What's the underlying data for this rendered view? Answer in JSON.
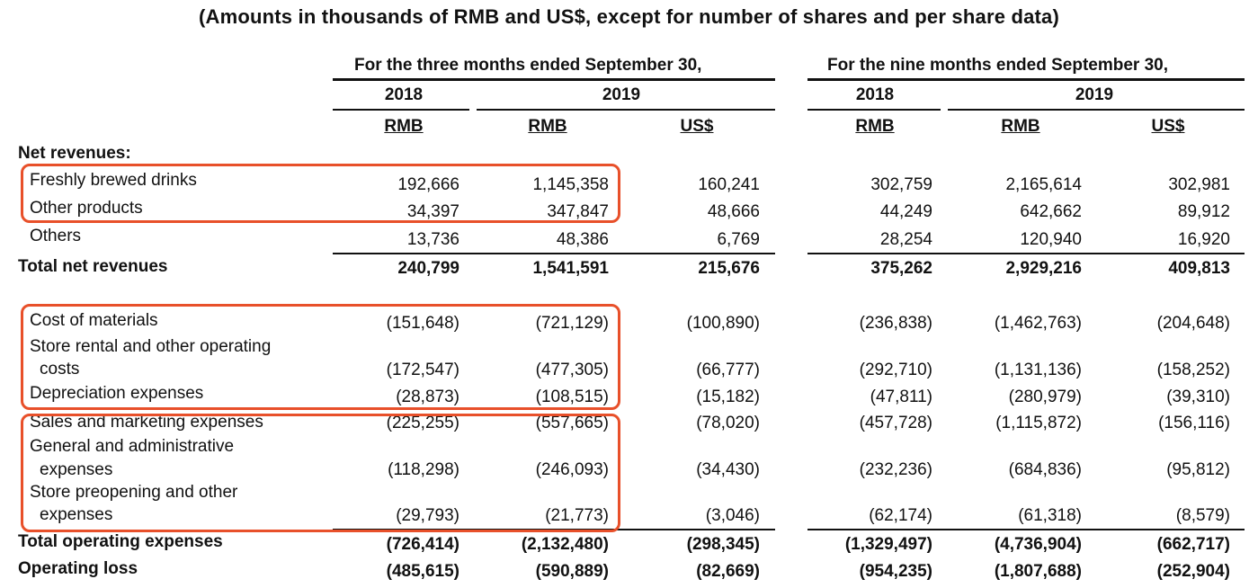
{
  "title": "(Amounts in thousands of RMB and US$, except for number of shares and per share data)",
  "headers": {
    "period_three": "For the three months ended September 30,",
    "period_nine": "For the nine months ended September 30,",
    "years": [
      "2018",
      "2019",
      "2018",
      "2019"
    ],
    "currencies": [
      "RMB",
      "RMB",
      "US$",
      "RMB",
      "RMB",
      "US$"
    ]
  },
  "section_net_revenues": "Net revenues:",
  "rows": [
    {
      "label": [
        "Freshly brewed drinks"
      ],
      "values": [
        "192,666",
        "1,145,358",
        "160,241",
        "302,759",
        "2,165,614",
        "302,981"
      ]
    },
    {
      "label": [
        "Other products"
      ],
      "values": [
        "34,397",
        "347,847",
        "48,666",
        "44,249",
        "642,662",
        "89,912"
      ]
    },
    {
      "label": [
        "Others"
      ],
      "values": [
        "13,736",
        "48,386",
        "6,769",
        "28,254",
        "120,940",
        "16,920"
      ]
    },
    {
      "label": [
        "Total net revenues"
      ],
      "values": [
        "240,799",
        "1,541,591",
        "215,676",
        "375,262",
        "2,929,216",
        "409,813"
      ]
    },
    {
      "label": [
        "Cost of materials"
      ],
      "values": [
        "(151,648)",
        "(721,129)",
        "(100,890)",
        "(236,838)",
        "(1,462,763)",
        "(204,648)"
      ]
    },
    {
      "label": [
        "Store rental and other operating",
        "costs"
      ],
      "values": [
        "(172,547)",
        "(477,305)",
        "(66,777)",
        "(292,710)",
        "(1,131,136)",
        "(158,252)"
      ]
    },
    {
      "label": [
        "Depreciation expenses"
      ],
      "values": [
        "(28,873)",
        "(108,515)",
        "(15,182)",
        "(47,811)",
        "(280,979)",
        "(39,310)"
      ]
    },
    {
      "label": [
        "Sales and marketing expenses"
      ],
      "values": [
        "(225,255)",
        "(557,665)",
        "(78,020)",
        "(457,728)",
        "(1,115,872)",
        "(156,116)"
      ]
    },
    {
      "label": [
        "General and administrative",
        "expenses"
      ],
      "values": [
        "(118,298)",
        "(246,093)",
        "(34,430)",
        "(232,236)",
        "(684,836)",
        "(95,812)"
      ]
    },
    {
      "label": [
        "Store preopening and other",
        "expenses"
      ],
      "values": [
        "(29,793)",
        "(21,773)",
        "(3,046)",
        "(62,174)",
        "(61,318)",
        "(8,579)"
      ]
    },
    {
      "label": [
        "Total operating expenses"
      ],
      "values": [
        "(726,414)",
        "(2,132,480)",
        "(298,345)",
        "(1,329,497)",
        "(4,736,904)",
        "(662,717)"
      ]
    },
    {
      "label": [
        "Operating loss"
      ],
      "values": [
        "(485,615)",
        "(590,889)",
        "(82,669)",
        "(954,235)",
        "(1,807,688)",
        "(252,904)"
      ]
    }
  ],
  "colors": {
    "highlight": "#e8502a",
    "text": "#111111"
  }
}
